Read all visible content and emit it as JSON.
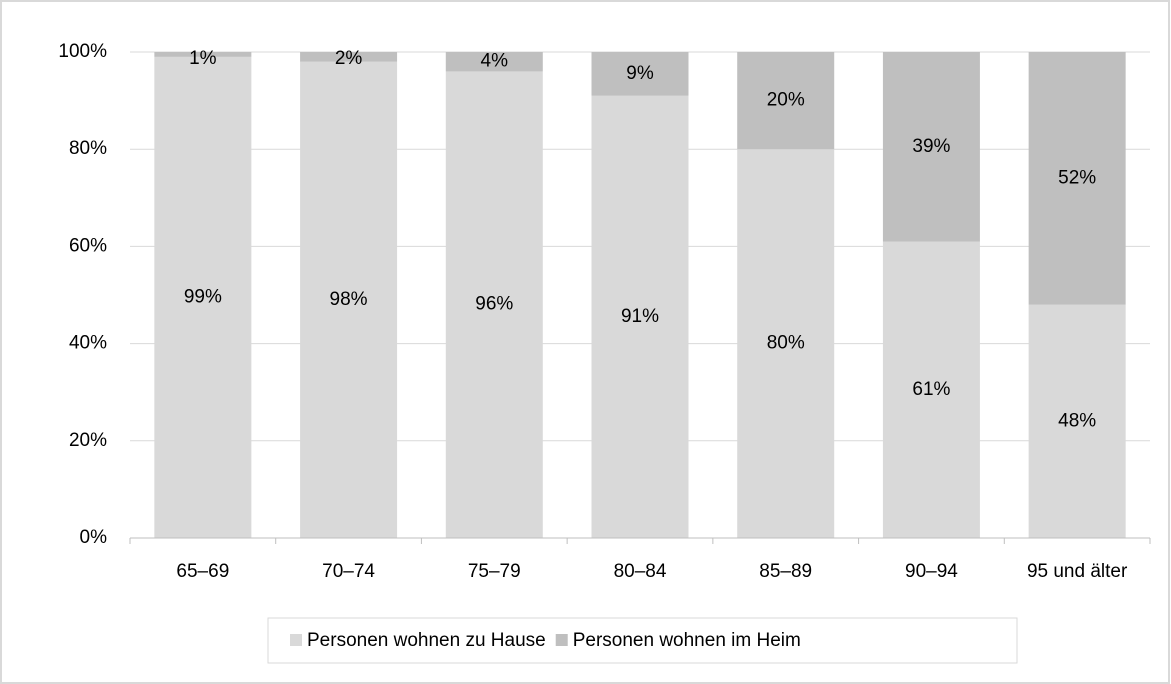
{
  "chart_data": {
    "type": "stacked_bar",
    "categories": [
      "65–69",
      "70–74",
      "75–79",
      "80–84",
      "85–89",
      "90–94",
      "95 und älter"
    ],
    "series": [
      {
        "name": "Personen wohnen zu Hause",
        "color": "#d9d9d9",
        "values": [
          99,
          98,
          96,
          91,
          80,
          61,
          48
        ],
        "value_labels": [
          "99%",
          "98%",
          "96%",
          "91%",
          "80%",
          "61%",
          "48%"
        ]
      },
      {
        "name": "Personen wohnen im Heim",
        "color": "#bfbfbf",
        "values": [
          1,
          2,
          4,
          9,
          20,
          39,
          52
        ],
        "value_labels": [
          "1%",
          "2%",
          "4%",
          "9%",
          "20%",
          "39%",
          "52%"
        ]
      }
    ],
    "ylim": [
      0,
      100
    ],
    "yticks": [
      {
        "value": 0,
        "label": "0%"
      },
      {
        "value": 20,
        "label": "20%"
      },
      {
        "value": 40,
        "label": "40%"
      },
      {
        "value": 60,
        "label": "60%"
      },
      {
        "value": 80,
        "label": "80%"
      },
      {
        "value": 100,
        "label": "100%"
      }
    ],
    "grid": true,
    "legend": "bottom"
  }
}
